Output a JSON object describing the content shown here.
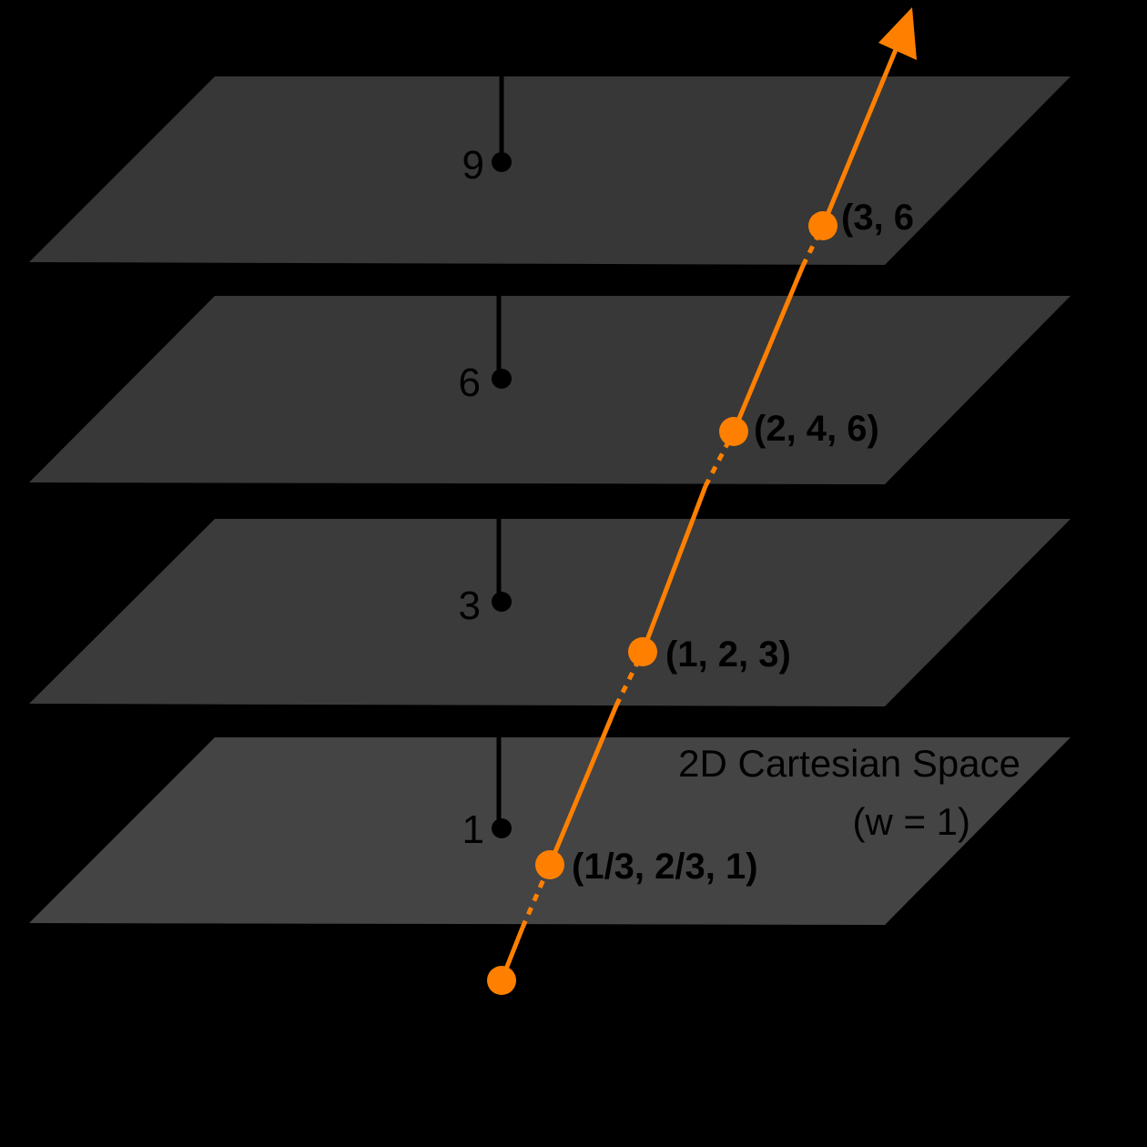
{
  "colors": {
    "background": "#000000",
    "plane_top": "#373737",
    "plane_upper": "#383838",
    "plane_lower": "#3b3b3b",
    "plane_bottom": "#444444",
    "ray": "#ff8000",
    "axis": "#000000"
  },
  "planes": [
    {
      "w_label": "9",
      "point_label": "(3, 6"
    },
    {
      "w_label": "6",
      "point_label": "(2, 4, 6)"
    },
    {
      "w_label": "3",
      "point_label": "(1, 2, 3)"
    },
    {
      "w_label": "1",
      "point_label": "(1/3, 2/3, 1)",
      "title": "2D Cartesian Space",
      "subtitle": "(w = 1)"
    }
  ],
  "ray": {
    "origin_marker": "circle",
    "end_marker": "arrowhead"
  }
}
